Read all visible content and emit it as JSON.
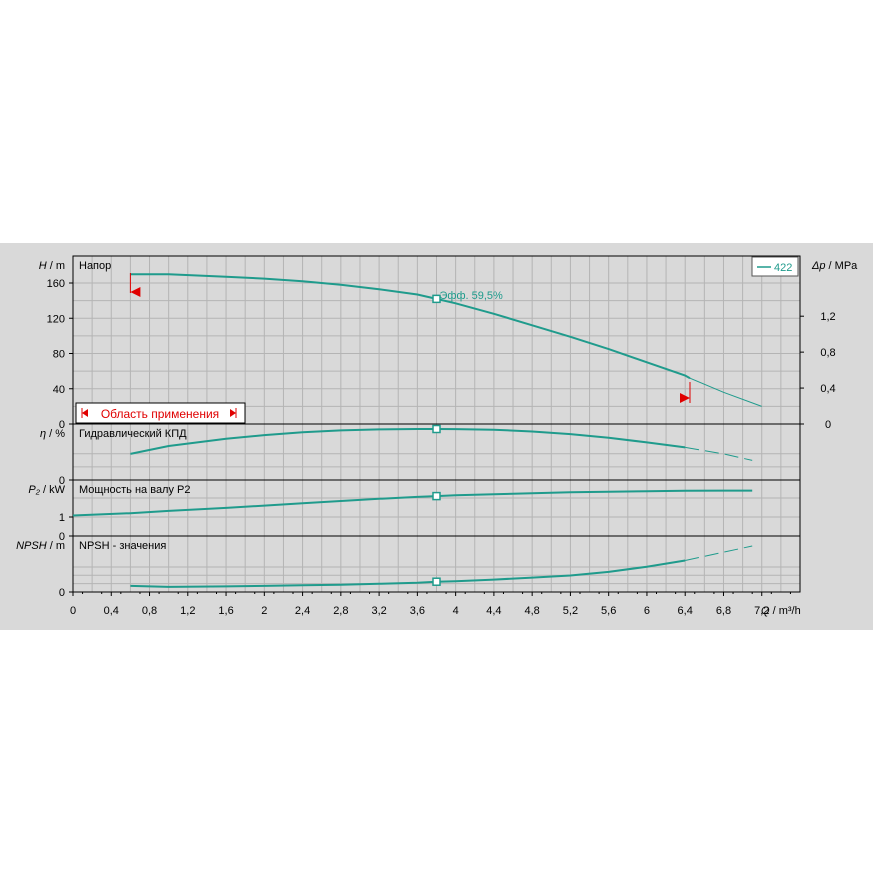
{
  "chart_data": {
    "type": "line",
    "x": {
      "label_var": "Q",
      "label_unit": " / m³/h",
      "range": [
        0,
        7.6
      ],
      "ticks": [
        "0",
        "0,4",
        "0,8",
        "1,2",
        "1,6",
        "2",
        "2,4",
        "2,8",
        "3,2",
        "3,6",
        "4",
        "4,4",
        "4,8",
        "5,2",
        "5,6",
        "6",
        "6,4",
        "6,8",
        "7,2"
      ],
      "tick_values": [
        0,
        0.4,
        0.8,
        1.2,
        1.6,
        2,
        2.4,
        2.8,
        3.2,
        3.6,
        4,
        4.4,
        4.8,
        5.2,
        5.6,
        6,
        6.4,
        6.8,
        7.2
      ]
    },
    "legend": {
      "entries": [
        "422"
      ],
      "placement": "top-right"
    },
    "operating_point": {
      "q": 3.8,
      "annotation": "Эфф.  59,5%"
    },
    "application_range": {
      "label": "Область применения",
      "q_min": 0.6,
      "q_max": 6.45
    },
    "panels": [
      {
        "id": "head",
        "title": "Напор",
        "y_label_var": "H",
        "y_label_unit": " / m",
        "y_range": [
          0,
          180
        ],
        "y_ticks": [
          "0",
          "40",
          "80",
          "120",
          "160"
        ],
        "y_tick_values": [
          0,
          40,
          80,
          120,
          160
        ],
        "y2_label_var": "Δp",
        "y2_label_unit": " / MPa",
        "y2_range": [
          0,
          1.76
        ],
        "y2_ticks": [
          "0",
          "0,4",
          "0,8",
          "1,2"
        ],
        "y2_tick_values": [
          0,
          0.4,
          0.8,
          1.2
        ],
        "series": [
          {
            "name": "422",
            "x": [
              0.6,
              1.0,
              1.6,
              2.0,
              2.4,
              2.8,
              3.2,
              3.6,
              3.8,
              4.0,
              4.4,
              4.8,
              5.2,
              5.6,
              6.0,
              6.4,
              6.45
            ],
            "y": [
              170,
              170,
              167,
              165,
              162,
              158,
              153,
              147,
              142,
              137,
              125,
              112,
              99,
              85,
              70,
              55,
              52
            ]
          }
        ],
        "extension": {
          "x": [
            6.45,
            6.8,
            7.2
          ],
          "y": [
            52,
            36,
            20
          ]
        }
      },
      {
        "id": "efficiency",
        "title": "Гидравлический КПД",
        "y_label_var": "η",
        "y_label_unit": " / %",
        "y_range": [
          0,
          70
        ],
        "y_ticks": [
          "0"
        ],
        "y_tick_values": [
          0
        ],
        "series": [
          {
            "name": "422",
            "x": [
              0.6,
              1.0,
              1.6,
              2.0,
              2.4,
              2.8,
              3.2,
              3.6,
              3.8,
              4.0,
              4.4,
              4.8,
              5.2,
              5.6,
              6.0,
              6.4
            ],
            "y": [
              25,
              36,
              46,
              51,
              55,
              57.5,
              59,
              59.5,
              59.5,
              59.3,
              58.5,
              56,
              52.5,
              47.5,
              41,
              34
            ]
          }
        ],
        "extension": {
          "x": [
            6.4,
            6.8,
            7.1
          ],
          "y": [
            34,
            25,
            16
          ]
        }
      },
      {
        "id": "power",
        "title": "Мощность на валу P2",
        "y_label_var": "P₂",
        "y_label_unit": " / kW",
        "y_range": [
          0,
          2.7
        ],
        "y_ticks": [
          "0",
          "1"
        ],
        "y_tick_values": [
          0,
          1
        ],
        "series": [
          {
            "name": "422",
            "x": [
              0,
              0.6,
              1.0,
              1.6,
              2.0,
              2.4,
              2.8,
              3.2,
              3.6,
              3.8,
              4.0,
              4.4,
              4.8,
              5.2,
              5.6,
              6.0,
              6.4,
              6.8,
              7.1
            ],
            "y": [
              1.08,
              1.2,
              1.32,
              1.48,
              1.6,
              1.72,
              1.84,
              1.96,
              2.06,
              2.1,
              2.14,
              2.2,
              2.25,
              2.3,
              2.33,
              2.36,
              2.38,
              2.39,
              2.39
            ]
          }
        ]
      },
      {
        "id": "npsh",
        "title": "NPSH - значения",
        "y_label_var": "NPSH",
        "y_label_unit": " / m",
        "y_range": [
          0,
          9
        ],
        "y_ticks": [
          "0"
        ],
        "y_tick_values": [
          0
        ],
        "series": [
          {
            "name": "422",
            "x": [
              0.6,
              1.0,
              1.6,
              2.0,
              2.4,
              2.8,
              3.2,
              3.6,
              3.8,
              4.0,
              4.4,
              4.8,
              5.2,
              5.6,
              6.0,
              6.4
            ],
            "y": [
              0.8,
              0.6,
              0.7,
              0.8,
              0.9,
              1.0,
              1.2,
              1.4,
              1.6,
              1.7,
              2.0,
              2.4,
              2.8,
              3.5,
              4.5,
              5.7
            ]
          }
        ],
        "extension": {
          "x": [
            6.4,
            6.8,
            7.1
          ],
          "y": [
            5.7,
            7.3,
            8.5
          ]
        }
      }
    ]
  }
}
